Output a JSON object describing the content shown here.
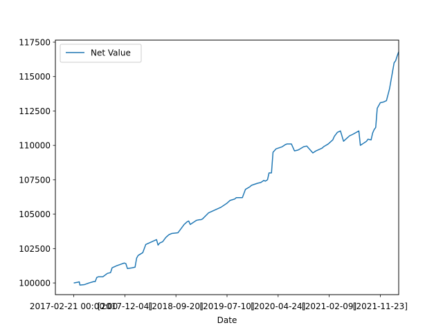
{
  "chart_data": {
    "type": "line",
    "title": "",
    "xlabel": "Date",
    "ylabel": "",
    "grid": false,
    "legend_position": "upper-left",
    "xlim": [
      -0.06,
      1.06
    ],
    "ylim": [
      99150,
      117650
    ],
    "x_ticks": [
      {
        "pos": 0.0,
        "label": "2017-02-21 00:00:00"
      },
      {
        "pos": 0.1667,
        "label": "[2017-12-04]"
      },
      {
        "pos": 0.3333,
        "label": "[2018-09-20]"
      },
      {
        "pos": 0.5,
        "label": "[2019-07-10]"
      },
      {
        "pos": 0.6667,
        "label": "[2020-04-24]"
      },
      {
        "pos": 0.8333,
        "label": "[2021-02-09]"
      },
      {
        "pos": 1.0,
        "label": "[2021-11-23]"
      }
    ],
    "y_ticks": [
      100000,
      102500,
      105000,
      107500,
      110000,
      112500,
      115000,
      117500
    ],
    "y_tick_labels": [
      "100000",
      "102500",
      "105000",
      "107500",
      "110000",
      "112500",
      "115000",
      "117500"
    ],
    "series": [
      {
        "name": "Net Value",
        "color": "#1f77b4",
        "x": [
          0,
          0.012,
          0.018,
          0.02,
          0.035,
          0.05,
          0.065,
          0.07,
          0.075,
          0.08,
          0.095,
          0.11,
          0.12,
          0.125,
          0.14,
          0.165,
          0.17,
          0.175,
          0.19,
          0.2,
          0.205,
          0.21,
          0.225,
          0.23,
          0.235,
          0.245,
          0.25,
          0.27,
          0.275,
          0.28,
          0.29,
          0.3,
          0.31,
          0.32,
          0.34,
          0.35,
          0.36,
          0.37,
          0.375,
          0.38,
          0.4,
          0.41,
          0.415,
          0.42,
          0.44,
          0.45,
          0.47,
          0.48,
          0.5,
          0.51,
          0.525,
          0.53,
          0.55,
          0.56,
          0.575,
          0.58,
          0.6,
          0.61,
          0.62,
          0.625,
          0.632,
          0.637,
          0.645,
          0.65,
          0.66,
          0.68,
          0.69,
          0.695,
          0.71,
          0.72,
          0.73,
          0.735,
          0.75,
          0.76,
          0.78,
          0.79,
          0.81,
          0.815,
          0.83,
          0.845,
          0.85,
          0.86,
          0.87,
          0.88,
          0.885,
          0.89,
          0.9,
          0.91,
          0.93,
          0.935,
          0.945,
          0.955,
          0.96,
          0.97,
          0.975,
          0.98,
          0.985,
          0.99,
          1.0,
          1.01,
          1.02,
          1.03,
          1.045,
          1.05
        ],
        "values": [
          100000,
          100050,
          100080,
          99850,
          99880,
          100000,
          100100,
          100100,
          100400,
          100450,
          100450,
          100700,
          100750,
          101100,
          101250,
          101450,
          101400,
          101050,
          101100,
          101150,
          101800,
          102000,
          102200,
          102500,
          102800,
          102900,
          102950,
          103150,
          102750,
          102900,
          103000,
          103300,
          103500,
          103600,
          103650,
          103950,
          104250,
          104450,
          104500,
          104250,
          104550,
          104600,
          104600,
          104650,
          105100,
          105200,
          105400,
          105500,
          105800,
          106000,
          106100,
          106200,
          106200,
          106800,
          107000,
          107100,
          107250,
          107300,
          107450,
          107400,
          107500,
          108000,
          108000,
          109500,
          109750,
          109900,
          110050,
          110100,
          110100,
          109600,
          109650,
          109700,
          109900,
          109950,
          109450,
          109600,
          109800,
          109900,
          110100,
          110400,
          110650,
          110950,
          111050,
          110300,
          110400,
          110500,
          110700,
          110800,
          111050,
          110000,
          110150,
          110300,
          110450,
          110400,
          110900,
          111150,
          111300,
          112700,
          113100,
          113150,
          113250,
          114100,
          116000,
          116150
        ]
      }
    ],
    "tail": {
      "x": [
        1.055,
        1.06
      ],
      "values": [
        116500,
        116800
      ]
    }
  }
}
